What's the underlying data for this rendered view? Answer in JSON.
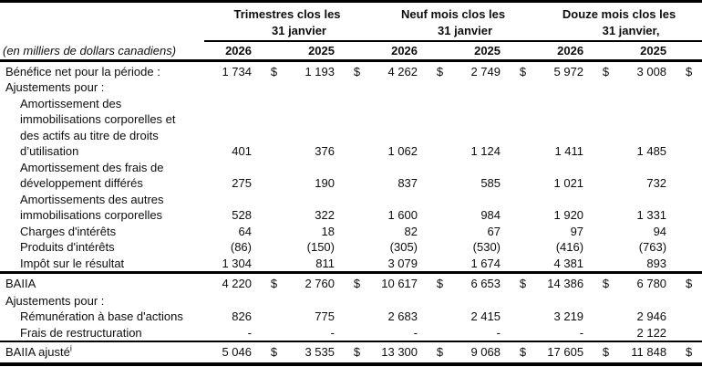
{
  "table": {
    "unit_label": "(en milliers de dollars canadiens)",
    "column_groups": [
      {
        "title_line1": "Trimestres clos les",
        "title_line2": "31 janvier",
        "years": [
          "2026",
          "2025"
        ]
      },
      {
        "title_line1": "Neuf mois clos les",
        "title_line2": "31 janvier",
        "years": [
          "2026",
          "2025"
        ]
      },
      {
        "title_line1": "Douze mois clos les",
        "title_line2": "31 janvier,",
        "years": [
          "2026",
          "2025"
        ]
      }
    ],
    "rows": [
      {
        "label": "Bénéfice net pour la période :",
        "cur": "$",
        "values": [
          "1 734",
          "1 193",
          "4 262",
          "2 749",
          "5 972",
          "3 008"
        ]
      },
      {
        "label": "Ajustements pour :"
      },
      {
        "label": "Amortissement des\nimmobilisations corporelles et\ndes actifs au titre de droits\nd’utilisation",
        "values": [
          "401",
          "376",
          "1 062",
          "1 124",
          "1 411",
          "1 485"
        ]
      },
      {
        "label": "Amortissement des frais de\ndéveloppement différés",
        "values": [
          "275",
          "190",
          "837",
          "585",
          "1 021",
          "732"
        ]
      },
      {
        "label": "Amortissements des autres\nimmobilisations corporelles",
        "values": [
          "528",
          "322",
          "1 600",
          "984",
          "1 920",
          "1 331"
        ]
      },
      {
        "label": "Charges d'intérêts",
        "values": [
          "64",
          "18",
          "82",
          "67",
          "97",
          "94"
        ]
      },
      {
        "label": "Produits d'intérêts",
        "values": [
          "(86)",
          "(150)",
          "(305)",
          "(530)",
          "(416)",
          "(763)"
        ]
      },
      {
        "label": "Impôt sur le résultat",
        "values": [
          "1 304",
          "811",
          "3 079",
          "1 674",
          "4 381",
          "893"
        ]
      },
      {
        "label": "BAIIA",
        "cur": "$",
        "values": [
          "4 220",
          "2 760",
          "10 617",
          "6 653",
          "14 386",
          "6 780"
        ]
      },
      {
        "label": "Ajustements pour :"
      },
      {
        "label": "Rémunération à base d'actions",
        "values": [
          "826",
          "775",
          "2 683",
          "2 415",
          "3 219",
          "2 946"
        ]
      },
      {
        "label": "Frais de restructuration",
        "values": [
          "-",
          "-",
          "-",
          "-",
          "-",
          "2 122"
        ]
      },
      {
        "label": "BAIIA ajusté",
        "sup": "i",
        "cur": "$",
        "values": [
          "5 046",
          "3 535",
          "13 300",
          "9 068",
          "17 605",
          "11 848"
        ]
      }
    ]
  }
}
